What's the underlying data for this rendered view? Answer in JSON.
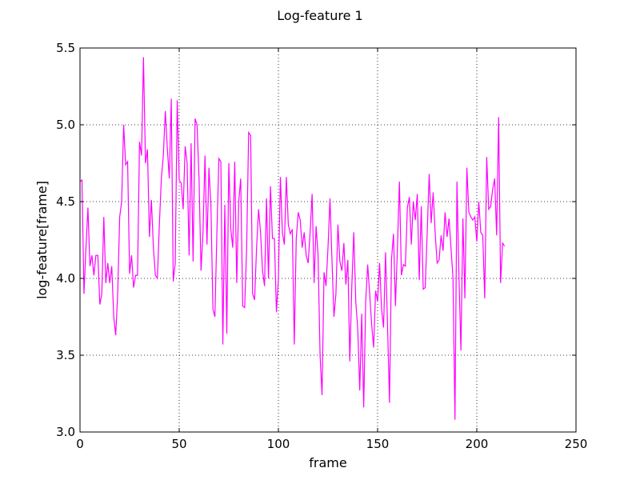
{
  "chart_data": {
    "type": "line",
    "title": "Log-feature 1",
    "xlabel": "frame",
    "ylabel": "log-feature[frame]",
    "xlim": [
      0,
      250
    ],
    "ylim": [
      3.0,
      5.5
    ],
    "xticks": [
      0,
      50,
      100,
      150,
      200,
      250
    ],
    "xtick_labels": [
      "0",
      "50",
      "100",
      "150",
      "200",
      "250"
    ],
    "yticks": [
      3.0,
      3.5,
      4.0,
      4.5,
      5.0,
      5.5
    ],
    "ytick_labels": [
      "3.0",
      "3.5",
      "4.0",
      "4.5",
      "5.0",
      "5.5"
    ],
    "grid": true,
    "color": "#ff00ff",
    "series": [
      {
        "values": [
          4.63,
          4.64,
          3.9,
          4.2,
          4.46,
          4.08,
          4.15,
          4.02,
          4.15,
          4.15,
          3.83,
          3.9,
          4.4,
          3.97,
          4.1,
          3.97,
          4.08,
          3.75,
          3.63,
          3.9,
          4.4,
          4.5,
          5.0,
          4.74,
          4.76,
          4.03,
          4.15,
          3.94,
          4.02,
          4.02,
          4.89,
          4.8,
          5.44,
          4.75,
          4.84,
          4.27,
          4.51,
          4.2,
          4.02,
          4.0,
          4.35,
          4.65,
          4.8,
          5.09,
          4.85,
          4.65,
          5.17,
          3.98,
          4.1,
          5.16,
          4.64,
          4.62,
          4.45,
          4.86,
          4.75,
          4.15,
          4.88,
          4.11,
          5.04,
          5.0,
          4.65,
          4.05,
          4.3,
          4.8,
          4.22,
          4.72,
          4.47,
          3.8,
          3.75,
          4.3,
          4.78,
          4.76,
          3.57,
          4.48,
          3.64,
          4.75,
          4.32,
          4.2,
          4.76,
          3.97,
          4.5,
          4.65,
          3.82,
          3.81,
          4.2,
          4.95,
          4.93,
          3.9,
          3.86,
          4.2,
          4.45,
          4.3,
          4.05,
          3.95,
          4.52,
          4.0,
          4.6,
          4.26,
          4.26,
          3.78,
          4.0,
          4.66,
          4.3,
          4.22,
          4.66,
          4.35,
          4.29,
          4.32,
          3.57,
          4.26,
          4.43,
          4.38,
          4.2,
          4.3,
          4.15,
          4.1,
          4.3,
          4.55,
          3.97,
          4.34,
          4.15,
          3.5,
          3.24,
          4.04,
          3.95,
          4.2,
          4.52,
          4.12,
          3.75,
          3.9,
          4.35,
          4.11,
          4.05,
          4.23,
          3.96,
          4.12,
          3.46,
          3.95,
          4.3,
          3.85,
          3.67,
          3.27,
          3.77,
          3.16,
          3.85,
          4.09,
          3.9,
          3.7,
          3.55,
          3.92,
          3.85,
          4.1,
          3.8,
          3.68,
          4.17,
          3.7,
          3.19,
          4.12,
          4.29,
          3.82,
          4.2,
          4.63,
          4.02,
          4.09,
          4.08,
          4.46,
          4.53,
          4.22,
          4.5,
          4.38,
          4.55,
          3.99,
          4.47,
          3.93,
          3.94,
          4.3,
          4.68,
          4.36,
          4.56,
          4.3,
          4.1,
          4.12,
          4.28,
          4.18,
          4.43,
          4.27,
          4.39,
          4.2,
          4.0,
          3.08,
          4.63,
          4.02,
          3.53,
          4.39,
          3.87,
          4.72,
          4.43,
          4.4,
          4.38,
          4.4,
          4.24,
          4.5,
          4.3,
          4.28,
          3.87,
          4.79,
          4.45,
          4.47,
          4.58,
          4.65,
          4.28,
          5.05,
          3.97,
          4.23,
          4.21
        ]
      }
    ]
  }
}
